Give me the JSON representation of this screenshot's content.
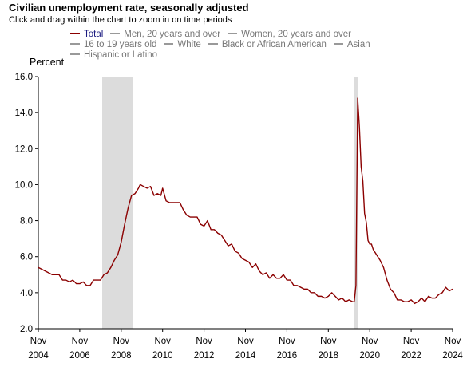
{
  "title": "Civilian unemployment rate, seasonally adjusted",
  "subtitle": "Click and drag within the chart to zoom in on time periods",
  "ylabel": "Percent",
  "legend": [
    {
      "label": "Total",
      "active": true
    },
    {
      "label": "Men, 20 years and over",
      "active": false
    },
    {
      "label": "Women, 20 years and over",
      "active": false
    },
    {
      "label": "16 to 19 years old",
      "active": false
    },
    {
      "label": "White",
      "active": false
    },
    {
      "label": "Black or African American",
      "active": false
    },
    {
      "label": "Asian",
      "active": false
    },
    {
      "label": "Hispanic or Latino",
      "active": false
    }
  ],
  "colors": {
    "series": "#8b0000",
    "recession": "#dcdcdc",
    "legend_active_text": "#1a1a80",
    "legend_inactive": "#999999"
  },
  "chart_data": {
    "type": "line",
    "title": "Civilian unemployment rate, seasonally adjusted",
    "ylabel": "Percent",
    "xlabel": "",
    "ylim": [
      2.0,
      16.0
    ],
    "y_ticks": [
      "2.0",
      "4.0",
      "6.0",
      "8.0",
      "10.0",
      "12.0",
      "14.0",
      "16.0"
    ],
    "x_ticks": [
      {
        "date": "2004-11",
        "month": "Nov",
        "year": "2004"
      },
      {
        "date": "2006-11",
        "month": "Nov",
        "year": "2006"
      },
      {
        "date": "2008-11",
        "month": "Nov",
        "year": "2008"
      },
      {
        "date": "2010-11",
        "month": "Nov",
        "year": "2010"
      },
      {
        "date": "2012-11",
        "month": "Nov",
        "year": "2012"
      },
      {
        "date": "2014-11",
        "month": "Nov",
        "year": "2014"
      },
      {
        "date": "2016-11",
        "month": "Nov",
        "year": "2016"
      },
      {
        "date": "2018-11",
        "month": "Nov",
        "year": "2018"
      },
      {
        "date": "2020-11",
        "month": "Nov",
        "year": "2020"
      },
      {
        "date": "2022-11",
        "month": "Nov",
        "year": "2022"
      },
      {
        "date": "2024-11",
        "month": "Nov",
        "year": "2024"
      }
    ],
    "grid": false,
    "legend_position": "top",
    "recessions": [
      {
        "start": "2007-12",
        "end": "2009-06"
      },
      {
        "start": "2020-02",
        "end": "2020-04"
      }
    ],
    "series": [
      {
        "name": "Total",
        "points": [
          [
            "2004-11",
            5.4
          ],
          [
            "2005-01",
            5.3
          ],
          [
            "2005-03",
            5.2
          ],
          [
            "2005-05",
            5.1
          ],
          [
            "2005-07",
            5.0
          ],
          [
            "2005-09",
            5.0
          ],
          [
            "2005-11",
            5.0
          ],
          [
            "2006-01",
            4.7
          ],
          [
            "2006-03",
            4.7
          ],
          [
            "2006-05",
            4.6
          ],
          [
            "2006-07",
            4.7
          ],
          [
            "2006-09",
            4.5
          ],
          [
            "2006-11",
            4.5
          ],
          [
            "2007-01",
            4.6
          ],
          [
            "2007-03",
            4.4
          ],
          [
            "2007-05",
            4.4
          ],
          [
            "2007-07",
            4.7
          ],
          [
            "2007-09",
            4.7
          ],
          [
            "2007-11",
            4.7
          ],
          [
            "2008-01",
            5.0
          ],
          [
            "2008-03",
            5.1
          ],
          [
            "2008-05",
            5.4
          ],
          [
            "2008-07",
            5.8
          ],
          [
            "2008-09",
            6.1
          ],
          [
            "2008-11",
            6.8
          ],
          [
            "2009-01",
            7.8
          ],
          [
            "2009-03",
            8.7
          ],
          [
            "2009-05",
            9.4
          ],
          [
            "2009-07",
            9.5
          ],
          [
            "2009-09",
            9.8
          ],
          [
            "2009-10",
            10.0
          ],
          [
            "2009-12",
            9.9
          ],
          [
            "2010-02",
            9.8
          ],
          [
            "2010-04",
            9.9
          ],
          [
            "2010-06",
            9.4
          ],
          [
            "2010-08",
            9.5
          ],
          [
            "2010-10",
            9.4
          ],
          [
            "2010-11",
            9.8
          ],
          [
            "2011-01",
            9.1
          ],
          [
            "2011-03",
            9.0
          ],
          [
            "2011-05",
            9.0
          ],
          [
            "2011-07",
            9.0
          ],
          [
            "2011-09",
            9.0
          ],
          [
            "2011-11",
            8.6
          ],
          [
            "2012-01",
            8.3
          ],
          [
            "2012-03",
            8.2
          ],
          [
            "2012-05",
            8.2
          ],
          [
            "2012-07",
            8.2
          ],
          [
            "2012-09",
            7.8
          ],
          [
            "2012-11",
            7.7
          ],
          [
            "2013-01",
            8.0
          ],
          [
            "2013-03",
            7.5
          ],
          [
            "2013-05",
            7.5
          ],
          [
            "2013-07",
            7.3
          ],
          [
            "2013-09",
            7.2
          ],
          [
            "2013-11",
            6.9
          ],
          [
            "2014-01",
            6.6
          ],
          [
            "2014-03",
            6.7
          ],
          [
            "2014-05",
            6.3
          ],
          [
            "2014-07",
            6.2
          ],
          [
            "2014-09",
            5.9
          ],
          [
            "2014-11",
            5.8
          ],
          [
            "2015-01",
            5.7
          ],
          [
            "2015-03",
            5.4
          ],
          [
            "2015-05",
            5.6
          ],
          [
            "2015-07",
            5.2
          ],
          [
            "2015-09",
            5.0
          ],
          [
            "2015-11",
            5.1
          ],
          [
            "2016-01",
            4.8
          ],
          [
            "2016-03",
            5.0
          ],
          [
            "2016-05",
            4.8
          ],
          [
            "2016-07",
            4.8
          ],
          [
            "2016-09",
            5.0
          ],
          [
            "2016-11",
            4.7
          ],
          [
            "2017-01",
            4.7
          ],
          [
            "2017-03",
            4.4
          ],
          [
            "2017-05",
            4.4
          ],
          [
            "2017-07",
            4.3
          ],
          [
            "2017-09",
            4.2
          ],
          [
            "2017-11",
            4.2
          ],
          [
            "2018-01",
            4.0
          ],
          [
            "2018-03",
            4.0
          ],
          [
            "2018-05",
            3.8
          ],
          [
            "2018-07",
            3.8
          ],
          [
            "2018-09",
            3.7
          ],
          [
            "2018-11",
            3.8
          ],
          [
            "2019-01",
            4.0
          ],
          [
            "2019-03",
            3.8
          ],
          [
            "2019-05",
            3.6
          ],
          [
            "2019-07",
            3.7
          ],
          [
            "2019-09",
            3.5
          ],
          [
            "2019-11",
            3.6
          ],
          [
            "2020-01",
            3.5
          ],
          [
            "2020-02",
            3.5
          ],
          [
            "2020-03",
            4.4
          ],
          [
            "2020-04",
            14.8
          ],
          [
            "2020-05",
            13.2
          ],
          [
            "2020-06",
            11.0
          ],
          [
            "2020-07",
            10.2
          ],
          [
            "2020-08",
            8.4
          ],
          [
            "2020-09",
            7.9
          ],
          [
            "2020-10",
            6.9
          ],
          [
            "2020-11",
            6.7
          ],
          [
            "2020-12",
            6.7
          ],
          [
            "2021-01",
            6.4
          ],
          [
            "2021-03",
            6.1
          ],
          [
            "2021-05",
            5.8
          ],
          [
            "2021-07",
            5.4
          ],
          [
            "2021-09",
            4.7
          ],
          [
            "2021-11",
            4.2
          ],
          [
            "2022-01",
            4.0
          ],
          [
            "2022-03",
            3.6
          ],
          [
            "2022-05",
            3.6
          ],
          [
            "2022-07",
            3.5
          ],
          [
            "2022-09",
            3.5
          ],
          [
            "2022-11",
            3.6
          ],
          [
            "2023-01",
            3.4
          ],
          [
            "2023-03",
            3.5
          ],
          [
            "2023-05",
            3.7
          ],
          [
            "2023-07",
            3.5
          ],
          [
            "2023-09",
            3.8
          ],
          [
            "2023-11",
            3.7
          ],
          [
            "2024-01",
            3.7
          ],
          [
            "2024-03",
            3.9
          ],
          [
            "2024-05",
            4.0
          ],
          [
            "2024-07",
            4.3
          ],
          [
            "2024-09",
            4.1
          ],
          [
            "2024-11",
            4.2
          ]
        ]
      }
    ]
  }
}
